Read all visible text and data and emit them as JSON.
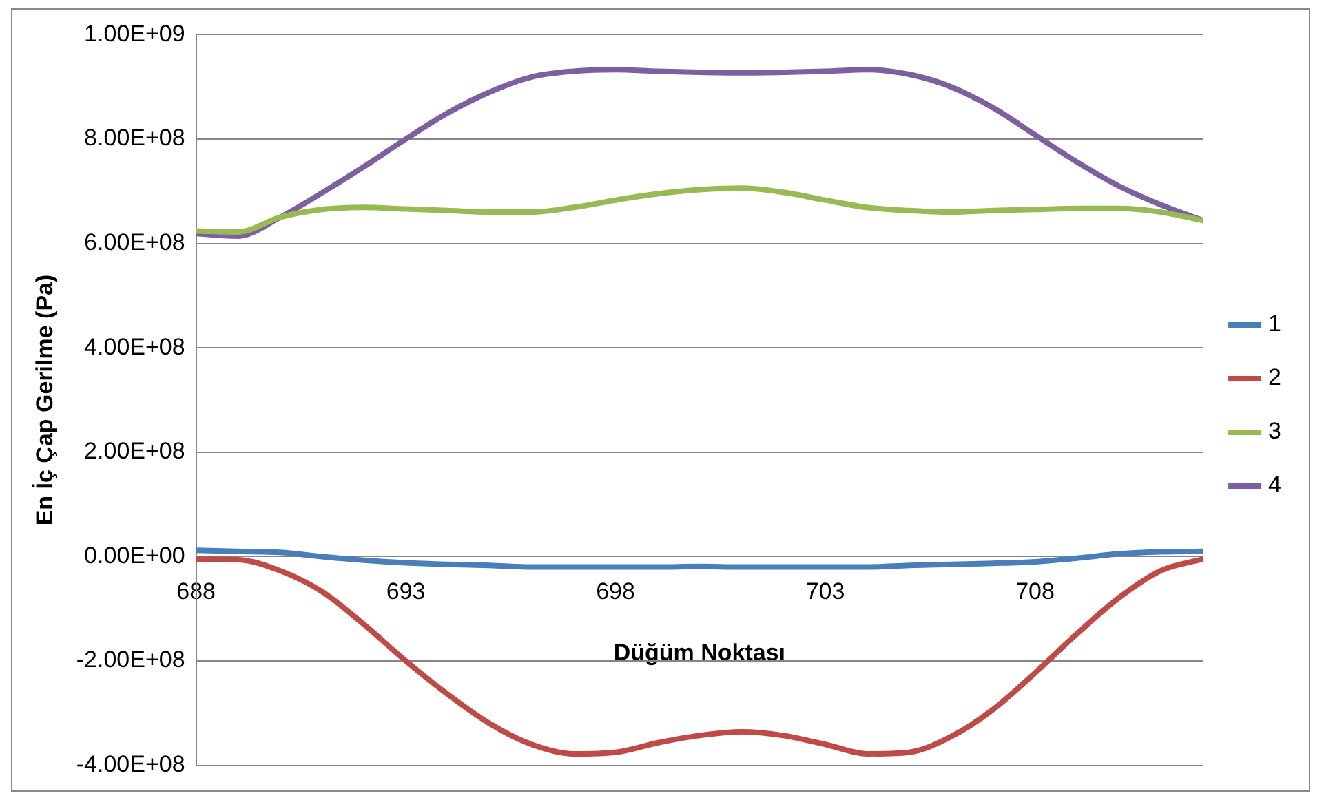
{
  "chart_data": {
    "type": "line",
    "xlabel": "Düğüm Noktası",
    "ylabel": "En İç Çap Gerilme (Pa)",
    "x": [
      688,
      689,
      690,
      691,
      692,
      693,
      694,
      695,
      696,
      697,
      698,
      699,
      700,
      701,
      702,
      703,
      704,
      705,
      706,
      707,
      708,
      709,
      710,
      711,
      712
    ],
    "series": [
      {
        "name": "1",
        "color": "#4a7ebb",
        "values": [
          12000000,
          10000000,
          8000000,
          0,
          -7000000,
          -12000000,
          -15000000,
          -17000000,
          -20000000,
          -20000000,
          -20000000,
          -20000000,
          -19000000,
          -20000000,
          -20000000,
          -20000000,
          -20000000,
          -17000000,
          -15000000,
          -13000000,
          -10000000,
          -3000000,
          5000000,
          9000000,
          10000000
        ]
      },
      {
        "name": "2",
        "color": "#be4b48",
        "values": [
          -5000000,
          -6000000,
          -27000000,
          -67000000,
          -130000000,
          -200000000,
          -264000000,
          -320000000,
          -360000000,
          -378000000,
          -375000000,
          -357000000,
          -343000000,
          -336000000,
          -343000000,
          -360000000,
          -378000000,
          -375000000,
          -345000000,
          -293000000,
          -223000000,
          -148000000,
          -79000000,
          -27000000,
          -5000000
        ]
      },
      {
        "name": "3",
        "color": "#98b954",
        "values": [
          624000000,
          622000000,
          650000000,
          665000000,
          669000000,
          666000000,
          663000000,
          660000000,
          660000000,
          669000000,
          683000000,
          695000000,
          703000000,
          706000000,
          698000000,
          683000000,
          669000000,
          663000000,
          660000000,
          663000000,
          665000000,
          667000000,
          667000000,
          660000000,
          644000000
        ]
      },
      {
        "name": "4",
        "color": "#7d60a0",
        "values": [
          619000000,
          614000000,
          650000000,
          697000000,
          747000000,
          800000000,
          850000000,
          890000000,
          919000000,
          930000000,
          933000000,
          930000000,
          928000000,
          927000000,
          928000000,
          930000000,
          933000000,
          924000000,
          900000000,
          860000000,
          808000000,
          756000000,
          710000000,
          674000000,
          644000000
        ]
      }
    ],
    "xlim": [
      688,
      712
    ],
    "xticks": [
      688,
      693,
      698,
      703,
      708
    ],
    "ylim": [
      -400000000,
      1000000000
    ],
    "yticks": [
      {
        "value": -400000000,
        "label": "-4.00E+08"
      },
      {
        "value": -200000000,
        "label": "-2.00E+08"
      },
      {
        "value": 0,
        "label": "0.00E+00"
      },
      {
        "value": 200000000,
        "label": "2.00E+08"
      },
      {
        "value": 400000000,
        "label": "4.00E+08"
      },
      {
        "value": 600000000,
        "label": "6.00E+08"
      },
      {
        "value": 800000000,
        "label": "8.00E+08"
      },
      {
        "value": 1000000000,
        "label": "1.00E+09"
      }
    ],
    "grid": "y",
    "legend": "right",
    "marker": "none",
    "line_style": "solid"
  }
}
